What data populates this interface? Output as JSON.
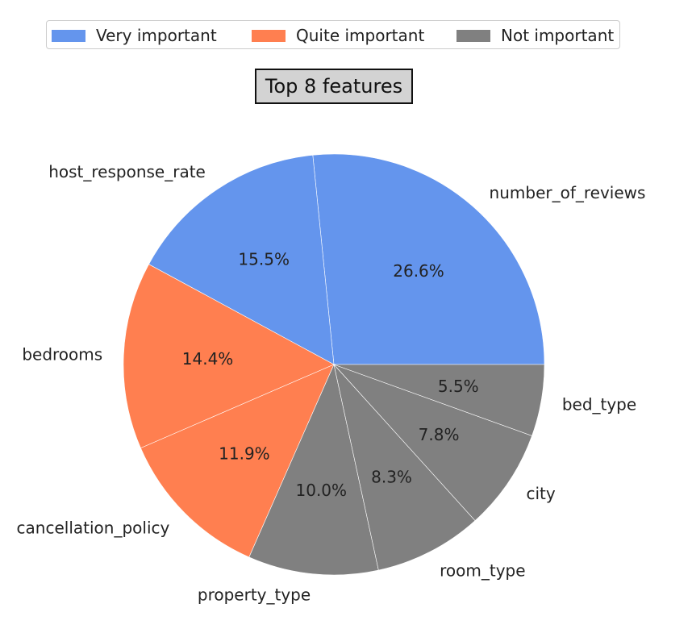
{
  "chart_data": {
    "type": "pie",
    "title": "Top 8 features",
    "legend": [
      {
        "name": "Very important",
        "color": "#6495ED"
      },
      {
        "name": "Quite important",
        "color": "#FF7F50"
      },
      {
        "name": "Not important",
        "color": "#808080"
      }
    ],
    "slices": [
      {
        "label": "number_of_reviews",
        "value": 26.6,
        "display": "26.6%",
        "group": "Very important",
        "color": "#6495ED"
      },
      {
        "label": "host_response_rate",
        "value": 15.5,
        "display": "15.5%",
        "group": "Very important",
        "color": "#6495ED"
      },
      {
        "label": "bedrooms",
        "value": 14.4,
        "display": "14.4%",
        "group": "Quite important",
        "color": "#FF7F50"
      },
      {
        "label": "cancellation_policy",
        "value": 11.9,
        "display": "11.9%",
        "group": "Quite important",
        "color": "#FF7F50"
      },
      {
        "label": "property_type",
        "value": 10.0,
        "display": "10.0%",
        "group": "Not important",
        "color": "#808080"
      },
      {
        "label": "room_type",
        "value": 8.3,
        "display": "8.3%",
        "group": "Not important",
        "color": "#808080"
      },
      {
        "label": "city",
        "value": 7.8,
        "display": "7.8%",
        "group": "Not important",
        "color": "#808080"
      },
      {
        "label": "bed_type",
        "value": 5.5,
        "display": "5.5%",
        "group": "Not important",
        "color": "#808080"
      }
    ],
    "start_angle": 0,
    "direction": "counterclockwise",
    "legend_position": "top-center"
  }
}
